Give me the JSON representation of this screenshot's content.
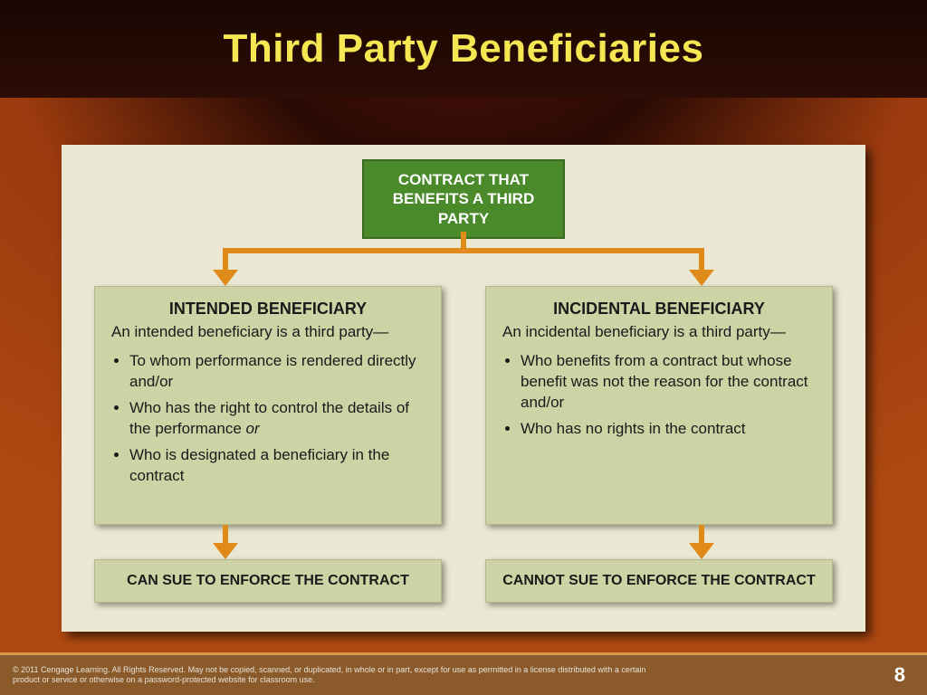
{
  "slide": {
    "title": "Third Party Beneficiaries",
    "title_color": "#f5e752",
    "title_fontsize": 44,
    "background_gradient": [
      "#1a0602",
      "#9a3a0e",
      "#b04a12"
    ],
    "page_number": "8",
    "copyright": "© 2011 Cengage Learning. All Rights Reserved. May not be copied, scanned, or duplicated, in whole or in part, except for use as permitted in a license distributed with a certain product or service or otherwise on a password-protected website for classroom use."
  },
  "diagram": {
    "type": "flowchart",
    "panel_bg": "#eae8d2",
    "node_bg_green": "#4a8a2a",
    "node_bg_tan": "#cdd3a5",
    "connector_color": "#e08a1a",
    "top": {
      "label": "CONTRACT THAT BENEFITS A THIRD PARTY"
    },
    "left": {
      "heading": "INTENDED BENEFICIARY",
      "lead": "An intended beneficiary is a third party—",
      "bullets": [
        "To whom performance is rendered directly and/or",
        "Who has the right to control the details of the performance",
        "Who is designated a beneficiary in the contract"
      ],
      "bullet2_suffix_italic": "or",
      "result": "CAN SUE TO ENFORCE THE CONTRACT"
    },
    "right": {
      "heading": "INCIDENTAL BENEFICIARY",
      "lead": "An incidental beneficiary is a third party—",
      "bullets": [
        "Who benefits from a contract but whose benefit was not the reason for the contract and/or",
        "Who has no rights in the contract"
      ],
      "result": "CANNOT SUE TO ENFORCE THE CONTRACT"
    }
  }
}
